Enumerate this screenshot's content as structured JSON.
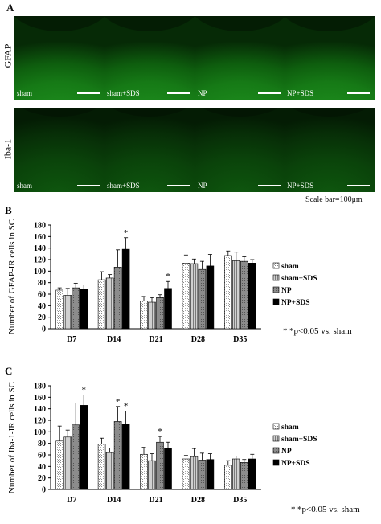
{
  "panelA": {
    "letter": "A",
    "rows": [
      {
        "label": "GFAP",
        "images": [
          "sham",
          "sham+SDS",
          "NP",
          "NP+SDS"
        ]
      },
      {
        "label": "Iba-1",
        "images": [
          "sham",
          "sham+SDS",
          "NP",
          "NP+SDS"
        ]
      }
    ],
    "scale_bar": "Scale bar=100μm",
    "colors": {
      "tissue_dark": "#062a06",
      "tissue_bright": "#1e8f1e"
    }
  },
  "chart_data": [
    {
      "panel": "B",
      "type": "bar",
      "ylabel": "Number of GFAP-IR cells in SC",
      "ylim": [
        0,
        180
      ],
      "yticks": [
        0,
        20,
        40,
        60,
        80,
        100,
        120,
        140,
        160,
        180
      ],
      "categories": [
        "D7",
        "D14",
        "D21",
        "D28",
        "D35"
      ],
      "series": [
        {
          "name": "sham",
          "values": [
            67,
            85,
            48,
            114,
            127
          ],
          "errors": [
            4,
            14,
            8,
            14,
            8
          ]
        },
        {
          "name": "sham+SDS",
          "values": [
            58,
            88,
            46,
            113,
            118
          ],
          "errors": [
            12,
            6,
            8,
            8,
            15
          ]
        },
        {
          "name": "NP",
          "values": [
            71,
            107,
            54,
            103,
            117
          ],
          "errors": [
            8,
            30,
            5,
            14,
            8
          ]
        },
        {
          "name": "NP+SDS",
          "values": [
            68,
            138,
            70,
            109,
            114
          ],
          "errors": [
            8,
            20,
            12,
            20,
            6
          ]
        }
      ],
      "significance": [
        {
          "category": "D14",
          "series": "NP+SDS",
          "mark": "*"
        },
        {
          "category": "D21",
          "series": "NP+SDS",
          "mark": "*"
        }
      ],
      "note_star": "*",
      "note": "*p<0.05 vs. sham",
      "grid": false
    },
    {
      "panel": "C",
      "type": "bar",
      "ylabel": "Number of Iba-1-IR cells in SC",
      "ylim": [
        0,
        180
      ],
      "yticks": [
        0,
        20,
        40,
        60,
        80,
        100,
        120,
        140,
        160,
        180
      ],
      "categories": [
        "D7",
        "D14",
        "D21",
        "D28",
        "D35"
      ],
      "series": [
        {
          "name": "sham",
          "values": [
            84,
            79,
            61,
            53,
            42
          ],
          "errors": [
            26,
            10,
            12,
            6,
            8
          ]
        },
        {
          "name": "sham+SDS",
          "values": [
            91,
            64,
            50,
            57,
            53
          ],
          "errors": [
            12,
            8,
            12,
            14,
            5
          ]
        },
        {
          "name": "NP",
          "values": [
            112,
            118,
            82,
            51,
            47
          ],
          "errors": [
            38,
            26,
            10,
            12,
            5
          ]
        },
        {
          "name": "NP+SDS",
          "values": [
            146,
            114,
            72,
            52,
            53
          ],
          "errors": [
            18,
            22,
            10,
            10,
            8
          ]
        }
      ],
      "significance": [
        {
          "category": "D7",
          "series": "NP+SDS",
          "mark": "*"
        },
        {
          "category": "D14",
          "series": "NP",
          "mark": "*"
        },
        {
          "category": "D14",
          "series": "NP+SDS",
          "mark": "*"
        },
        {
          "category": "D21",
          "series": "NP",
          "mark": "*"
        }
      ],
      "note_star": "*",
      "note": "*p<0.05 vs. sham",
      "grid": false
    }
  ]
}
